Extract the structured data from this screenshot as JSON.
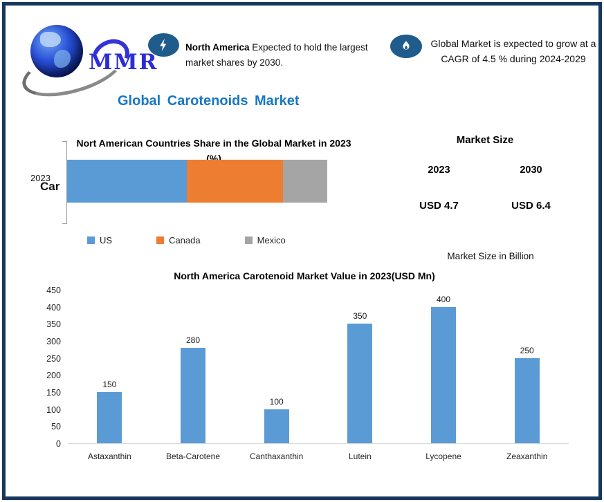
{
  "header": {
    "logo_text": "MMR",
    "callout_north_america": {
      "highlight": "North America",
      "text": "Expected to hold the largest market shares by 2030."
    },
    "callout_cagr": {
      "text": "Global Market is expected to grow at a CAGR of 4.5 % during 2024-2029"
    }
  },
  "title": "Global Carotenoids Market",
  "market_size": {
    "title": "Market Size",
    "entries": [
      {
        "year": "2023",
        "value": "USD 4.7"
      },
      {
        "year": "2030",
        "value": "USD 6.4"
      }
    ],
    "note": "Market Size in Billion"
  },
  "colors": {
    "accent_blue": "#1777C4",
    "bar_blue": "#5B9BD5",
    "orange": "#ED7D31",
    "gray": "#A5A5A5",
    "icon_navy": "#1F5C8B",
    "frame_navy": "#17375D"
  },
  "chart_data": [
    {
      "type": "bar",
      "subtype": "horizontal-stacked",
      "title": "Nort American Countries Share in the Global Market in 2023 (%)",
      "categories": [
        "2023"
      ],
      "clipped_axis_label": "Car",
      "xlim": [
        0,
        100
      ],
      "legend_position": "bottom",
      "series": [
        {
          "name": "US",
          "values": [
            46
          ],
          "color": "#5B9BD5"
        },
        {
          "name": "Canada",
          "values": [
            37
          ],
          "color": "#ED7D31"
        },
        {
          "name": "Mexico",
          "values": [
            17
          ],
          "color": "#A5A5A5"
        }
      ]
    },
    {
      "type": "bar",
      "title": "North America Carotenoid Market Value in 2023(USD Mn)",
      "categories": [
        "Astaxanthin",
        "Beta-Carotene",
        "Canthaxanthin",
        "Lutein",
        "Lycopene",
        "Zeaxanthin"
      ],
      "values": [
        150,
        280,
        100,
        350,
        400,
        250
      ],
      "ylim": [
        0,
        450
      ],
      "ytick_step": 50,
      "bar_color": "#5B9BD5",
      "grid": false,
      "data_labels": true
    }
  ]
}
